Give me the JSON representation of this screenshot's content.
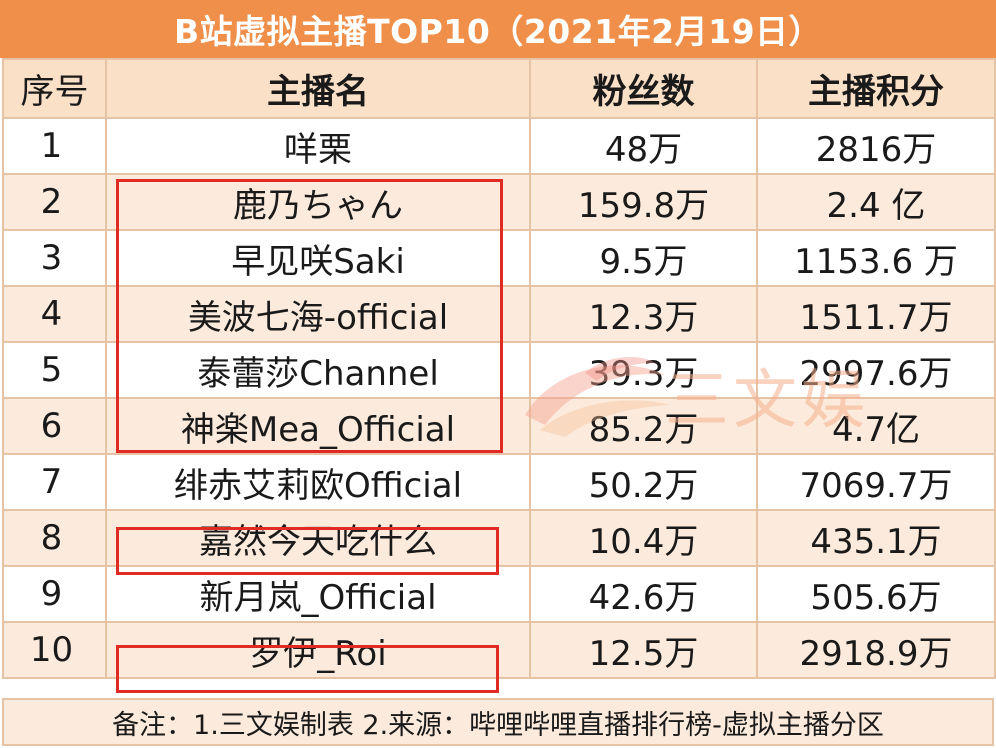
{
  "title": "B站虚拟主播TOP10（2021年2月19日）",
  "columns": [
    "序号",
    "主播名",
    "粉丝数",
    "主播积分"
  ],
  "rows": [
    {
      "rank": "1",
      "name": "咩栗",
      "fans": "48万",
      "score": "2816万"
    },
    {
      "rank": "2",
      "name": "鹿乃ちゃん",
      "fans": "159.8万",
      "score": "2.4 亿"
    },
    {
      "rank": "3",
      "name": "早见咲Saki",
      "fans": "9.5万",
      "score": "1153.6 万"
    },
    {
      "rank": "4",
      "name": "美波七海-official",
      "fans": "12.3万",
      "score": "1511.7万"
    },
    {
      "rank": "5",
      "name": "泰蕾莎Channel",
      "fans": "39.3万",
      "score": "2997.6万"
    },
    {
      "rank": "6",
      "name": "神楽Mea_Official",
      "fans": "85.2万",
      "score": "4.7亿"
    },
    {
      "rank": "7",
      "name": "绯赤艾莉欧Official",
      "fans": "50.2万",
      "score": "7069.7万"
    },
    {
      "rank": "8",
      "name": "嘉然今天吃什么",
      "fans": "10.4万",
      "score": "435.1万"
    },
    {
      "rank": "9",
      "name": "新月岚_Official",
      "fans": "42.6万",
      "score": "505.6万"
    },
    {
      "rank": "10",
      "name": "罗伊_Roi",
      "fans": "12.5万",
      "score": "2918.9万"
    }
  ],
  "footer": "备注：1.三文娱制表 2.来源：哔哩哔哩直播排行榜-虚拟主播分区",
  "watermark": "三文娱",
  "colors": {
    "title_bg": "#ef8f4a",
    "header_bg": "#fbe0c8",
    "alt_row_bg": "#fcebdc",
    "grid": "#e7c3a6",
    "highlight": "#e02a24"
  }
}
